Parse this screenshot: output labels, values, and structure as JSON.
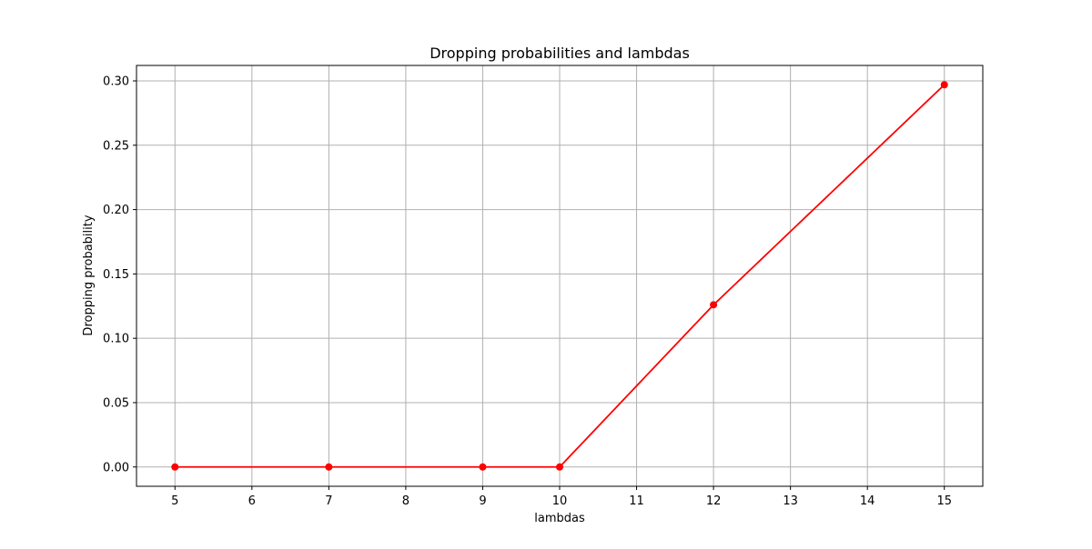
{
  "chart_data": {
    "type": "line",
    "title": "Dropping probabilities and lambdas",
    "xlabel": "lambdas",
    "ylabel": "Dropping probability",
    "x": [
      5,
      7,
      9,
      10,
      12,
      15
    ],
    "series": [
      {
        "values": [
          0.0,
          0.0,
          0.0,
          0.0,
          0.126,
          0.297
        ],
        "color": "#ff0000",
        "marker": "circle"
      }
    ],
    "xlim": [
      4.5,
      15.5
    ],
    "ylim": [
      -0.015,
      0.312
    ],
    "xticks": [
      5,
      6,
      7,
      8,
      9,
      10,
      11,
      12,
      13,
      14,
      15
    ],
    "xtick_labels": [
      "5",
      "6",
      "7",
      "8",
      "9",
      "10",
      "11",
      "12",
      "13",
      "14",
      "15"
    ],
    "yticks": [
      0.0,
      0.05,
      0.1,
      0.15,
      0.2,
      0.25,
      0.3
    ],
    "ytick_labels": [
      "0.00",
      "0.05",
      "0.10",
      "0.15",
      "0.20",
      "0.25",
      "0.30"
    ],
    "grid": true,
    "grid_color": "#b0b0b0"
  }
}
